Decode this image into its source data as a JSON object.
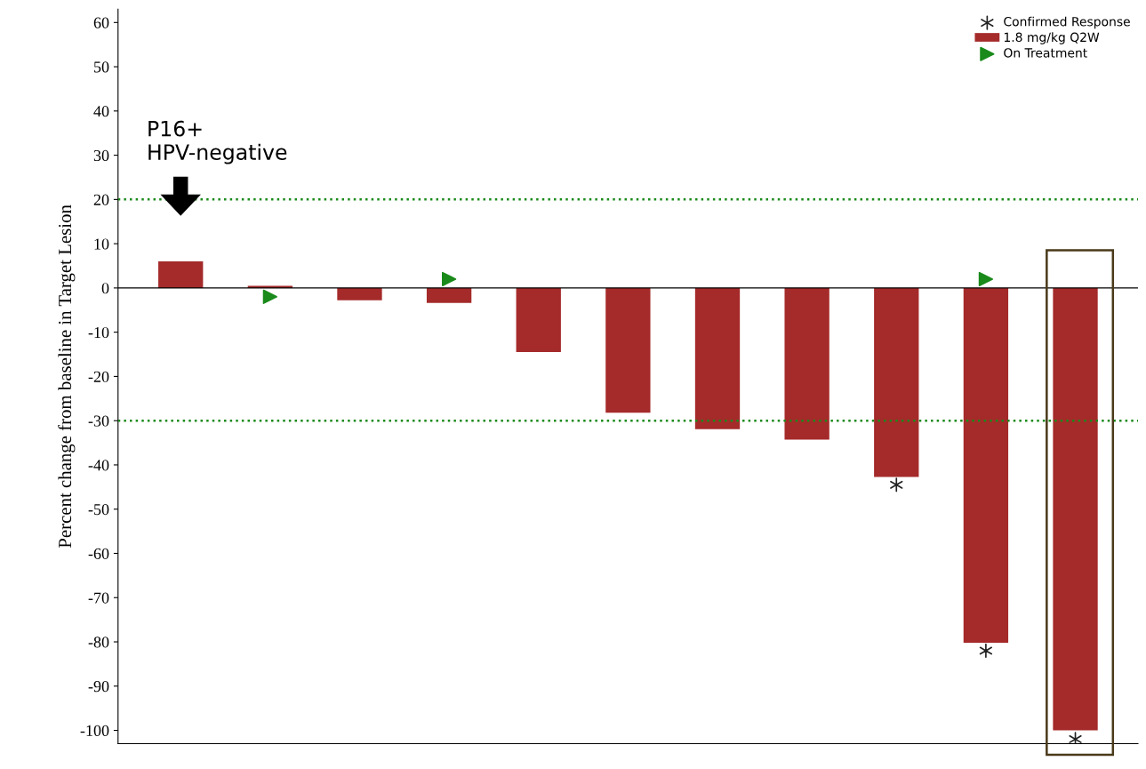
{
  "chart_data": {
    "type": "bar",
    "ylabel": "Percent change from baseline in Target Lesion",
    "categories": [
      null,
      null,
      null,
      null,
      null,
      null,
      null,
      null,
      null,
      null,
      null
    ],
    "series": [
      {
        "name": "Confirmed Response",
        "type": "scatter",
        "marker": "cross",
        "color": "#222222",
        "values": [
          null,
          null,
          null,
          null,
          null,
          null,
          null,
          null,
          -44.5,
          -82,
          -102
        ]
      },
      {
        "name": "1.8 mg/kg Q2W",
        "color": "#a52a2a",
        "values": [
          6,
          0.5,
          -2.8,
          -3.4,
          -14.5,
          -28.2,
          -31.9,
          -34.3,
          -42.7,
          -80.2,
          -100
        ]
      },
      {
        "name": "On Treatment",
        "type": "scatter",
        "marker": "triangle",
        "color": "#1a8a1a",
        "values": [
          null,
          -2,
          null,
          2,
          null,
          null,
          null,
          null,
          null,
          2,
          null
        ]
      }
    ],
    "ylim": [
      -103,
      63
    ],
    "yticks": [
      -100,
      -90,
      -80,
      -70,
      -60,
      -50,
      -40,
      -30,
      -20,
      -10,
      0,
      10,
      20,
      30,
      40,
      50,
      60
    ],
    "tick_labels": "y",
    "grid": false,
    "legend": "top right",
    "ref_lines": [
      {
        "axis": "y",
        "value": 20,
        "color": "#1a8a1a",
        "line_style": "dotted"
      },
      {
        "axis": "y",
        "value": -30,
        "color": "#1a8a1a",
        "line_style": "dotted"
      },
      {
        "axis": "y",
        "value": 0,
        "color": "#000000",
        "line_style": "solid"
      }
    ],
    "annotations": [
      "P16+\nHPV-negative"
    ]
  }
}
